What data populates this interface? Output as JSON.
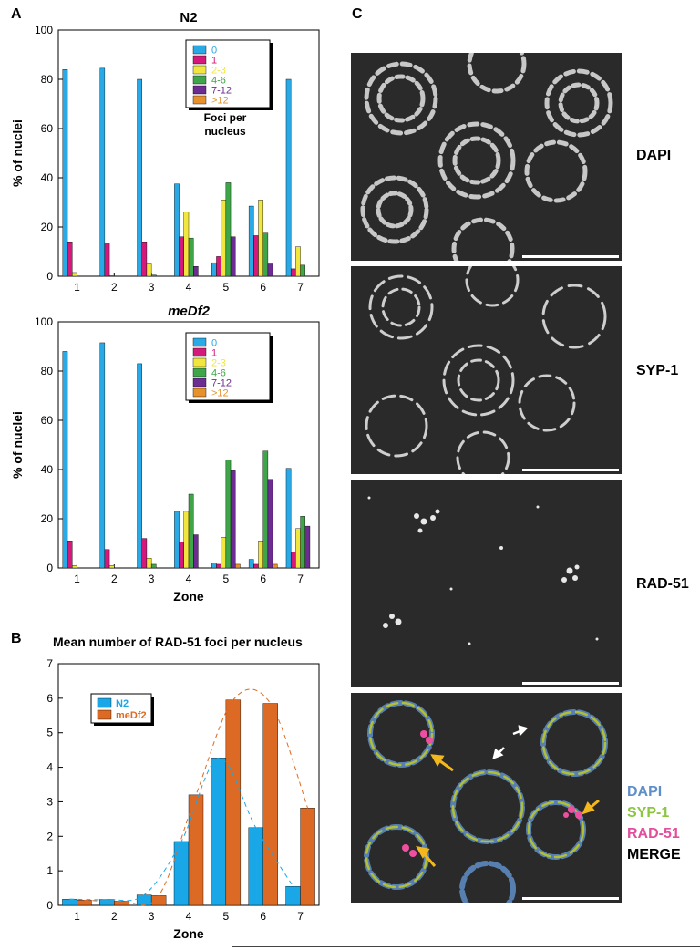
{
  "panel_labels": {
    "a": "A",
    "b": "B",
    "c": "C"
  },
  "colors": {
    "c0": "#29a9e6",
    "c1": "#d4197a",
    "c23": "#f1e640",
    "c46": "#3ea548",
    "c712": "#6d2c91",
    "c12p": "#e6912c",
    "n2": "#1aa7e8",
    "medf2": "#dd6a24"
  },
  "chart_data": [
    {
      "type": "bar",
      "title": "N2",
      "xlabel": "",
      "ylabel": "% of nuclei",
      "ylim": [
        0,
        100
      ],
      "yticks": [
        "0",
        "20",
        "40",
        "60",
        "80",
        "100"
      ],
      "categories": [
        "1",
        "2",
        "3",
        "4",
        "5",
        "6",
        "7"
      ],
      "legend_title": "Foci per nucleus",
      "legend_title_lines": [
        "Foci per",
        "nucleus"
      ],
      "legend_position": "top-right",
      "series": [
        {
          "name": "0",
          "values": [
            84,
            84.5,
            80,
            37.5,
            5.5,
            28.5,
            80
          ]
        },
        {
          "name": "1",
          "values": [
            14,
            13.5,
            14,
            16,
            8,
            16.5,
            3
          ]
        },
        {
          "name": "2-3",
          "values": [
            1.5,
            0.3,
            5,
            26,
            31,
            31,
            12
          ]
        },
        {
          "name": "4-6",
          "values": [
            0,
            0,
            0.5,
            15.5,
            38,
            17.5,
            4.5
          ]
        },
        {
          "name": "7-12",
          "values": [
            0,
            0,
            0,
            4,
            16,
            5,
            0
          ]
        },
        {
          "name": ">12",
          "values": [
            0,
            0,
            0,
            0,
            0,
            0,
            0
          ]
        }
      ]
    },
    {
      "type": "bar",
      "title": "meDf2",
      "xlabel": "Zone",
      "ylabel": "% of nuclei",
      "ylim": [
        0,
        100
      ],
      "yticks": [
        "0",
        "20",
        "40",
        "60",
        "80",
        "100"
      ],
      "categories": [
        "1",
        "2",
        "3",
        "4",
        "5",
        "6",
        "7"
      ],
      "legend_position": "top-right",
      "series": [
        {
          "name": "0",
          "values": [
            88,
            91.5,
            83,
            23,
            2,
            3.5,
            40.5
          ]
        },
        {
          "name": "1",
          "values": [
            11,
            7.5,
            12,
            10.5,
            1.5,
            1.5,
            6.5
          ]
        },
        {
          "name": "2-3",
          "values": [
            1,
            1,
            4,
            23,
            12.5,
            11,
            16
          ]
        },
        {
          "name": "4-6",
          "values": [
            0,
            0,
            1.5,
            30,
            44,
            47.5,
            21
          ]
        },
        {
          "name": "7-12",
          "values": [
            0,
            0,
            0,
            13.5,
            39.5,
            36,
            17
          ]
        },
        {
          "name": ">12",
          "values": [
            0,
            0,
            0,
            0,
            1.5,
            1.5,
            0
          ]
        }
      ]
    },
    {
      "type": "bar",
      "title": "Mean number of RAD-51 foci per nucleus",
      "xlabel": "Zone",
      "ylabel": "",
      "ylim": [
        0,
        7
      ],
      "yticks": [
        "0",
        "1",
        "2",
        "3",
        "4",
        "5",
        "6",
        "7"
      ],
      "categories": [
        "1",
        "2",
        "3",
        "4",
        "5",
        "6",
        "7"
      ],
      "legend_position": "top-left",
      "series": [
        {
          "name": "N2",
          "values": [
            0.18,
            0.17,
            0.3,
            1.85,
            4.27,
            2.25,
            0.55
          ]
        },
        {
          "name": "meDf2",
          "values": [
            0.15,
            0.12,
            0.28,
            3.2,
            5.95,
            5.85,
            2.82
          ]
        }
      ]
    }
  ],
  "micrographs": {
    "labels": [
      "DAPI",
      "SYP-1",
      "RAD-51"
    ],
    "merge_legend": [
      "DAPI",
      "SYP-1",
      "RAD-51",
      "MERGE"
    ]
  }
}
